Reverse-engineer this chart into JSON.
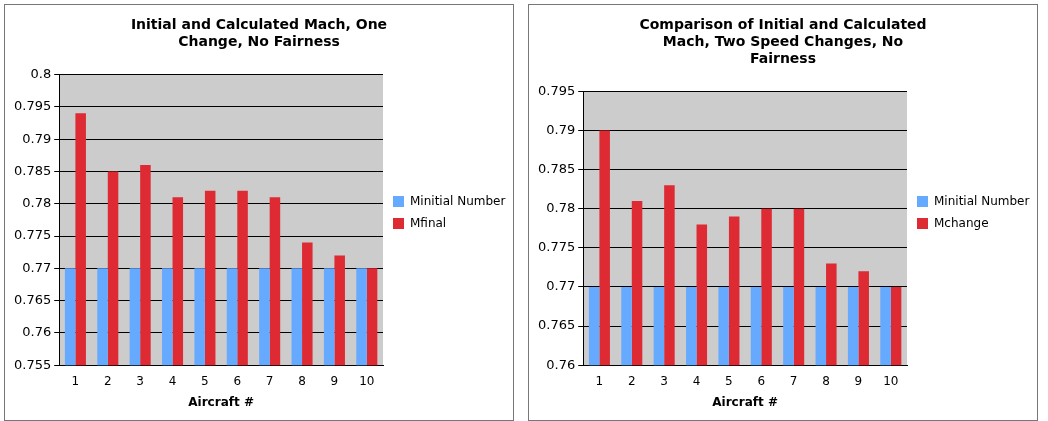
{
  "chart_data": [
    {
      "type": "bar",
      "title": "Initial and Calculated Mach, One Change, No Fairness",
      "xlabel": "Aircraft #",
      "categories": [
        "1",
        "2",
        "3",
        "4",
        "5",
        "6",
        "7",
        "8",
        "9",
        "10"
      ],
      "series": [
        {
          "name": "Minitial Number",
          "color": "#66aaff",
          "values": [
            0.77,
            0.77,
            0.77,
            0.77,
            0.77,
            0.77,
            0.77,
            0.77,
            0.77,
            0.77
          ]
        },
        {
          "name": "Mfinal",
          "color": "#dd2a33",
          "values": [
            0.794,
            0.785,
            0.786,
            0.781,
            0.782,
            0.782,
            0.781,
            0.774,
            0.772,
            0.77
          ]
        }
      ],
      "ylim": [
        0.755,
        0.8
      ],
      "yticks": [
        0.755,
        0.76,
        0.765,
        0.77,
        0.775,
        0.78,
        0.785,
        0.79,
        0.795,
        0.8
      ],
      "grid": "y",
      "legend": "right"
    },
    {
      "type": "bar",
      "title": "Comparison of Initial and Calculated Mach, Two Speed Changes, No Fairness",
      "xlabel": "Aircraft #",
      "categories": [
        "1",
        "2",
        "3",
        "4",
        "5",
        "6",
        "7",
        "8",
        "9",
        "10"
      ],
      "series": [
        {
          "name": "Minitial Number",
          "color": "#66aaff",
          "values": [
            0.77,
            0.77,
            0.77,
            0.77,
            0.77,
            0.77,
            0.77,
            0.77,
            0.77,
            0.77
          ]
        },
        {
          "name": "Mchange",
          "color": "#dd2a33",
          "values": [
            0.79,
            0.781,
            0.783,
            0.778,
            0.779,
            0.78,
            0.78,
            0.773,
            0.772,
            0.77
          ]
        }
      ],
      "ylim": [
        0.76,
        0.795
      ],
      "yticks": [
        0.76,
        0.765,
        0.77,
        0.775,
        0.78,
        0.785,
        0.79,
        0.795
      ],
      "grid": "y",
      "legend": "right"
    }
  ]
}
